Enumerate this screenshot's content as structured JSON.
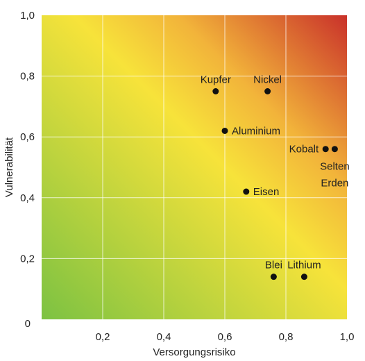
{
  "chart_data": {
    "type": "scatter",
    "xlabel": "Versorgungsrisiko",
    "ylabel": "Vulnerabilität",
    "xlim": [
      0,
      1.0
    ],
    "ylim": [
      0,
      1.0
    ],
    "grid": true,
    "background": "risk gradient from green (bottom-left) through yellow to red (top-right)",
    "colors": {
      "low": "#7cc242",
      "mid": "#f7e33a",
      "high": "#c9312a",
      "grid": "#ffffff",
      "point": "#111111"
    },
    "x_ticks": [
      {
        "value": 0,
        "label": "0"
      },
      {
        "value": 0.2,
        "label": "0,2"
      },
      {
        "value": 0.4,
        "label": "0,4"
      },
      {
        "value": 0.6,
        "label": "0,6"
      },
      {
        "value": 0.8,
        "label": "0,8"
      },
      {
        "value": 1.0,
        "label": "1,0"
      }
    ],
    "y_ticks": [
      {
        "value": 0.2,
        "label": "0,2"
      },
      {
        "value": 0.4,
        "label": "0,4"
      },
      {
        "value": 0.6,
        "label": "0,6"
      },
      {
        "value": 0.8,
        "label": "0,8"
      },
      {
        "value": 1.0,
        "label": "1,0"
      }
    ],
    "points": [
      {
        "name": "Kupfer",
        "lines": [
          "Kupfer"
        ],
        "x": 0.57,
        "y": 0.75,
        "label_pos": "above"
      },
      {
        "name": "Nickel",
        "lines": [
          "Nickel"
        ],
        "x": 0.74,
        "y": 0.75,
        "label_pos": "above"
      },
      {
        "name": "Aluminium",
        "lines": [
          "Aluminium"
        ],
        "x": 0.6,
        "y": 0.62,
        "label_pos": "right"
      },
      {
        "name": "Kobalt",
        "lines": [
          "Kobalt"
        ],
        "x": 0.93,
        "y": 0.56,
        "label_pos": "left"
      },
      {
        "name": "Selten Erden",
        "lines": [
          "Selten",
          "Erden"
        ],
        "x": 0.96,
        "y": 0.56,
        "label_pos": "below"
      },
      {
        "name": "Eisen",
        "lines": [
          "Eisen"
        ],
        "x": 0.67,
        "y": 0.42,
        "label_pos": "right"
      },
      {
        "name": "Blei",
        "lines": [
          "Blei"
        ],
        "x": 0.76,
        "y": 0.14,
        "label_pos": "above"
      },
      {
        "name": "Lithium",
        "lines": [
          "Lithium"
        ],
        "x": 0.86,
        "y": 0.14,
        "label_pos": "above"
      }
    ]
  }
}
